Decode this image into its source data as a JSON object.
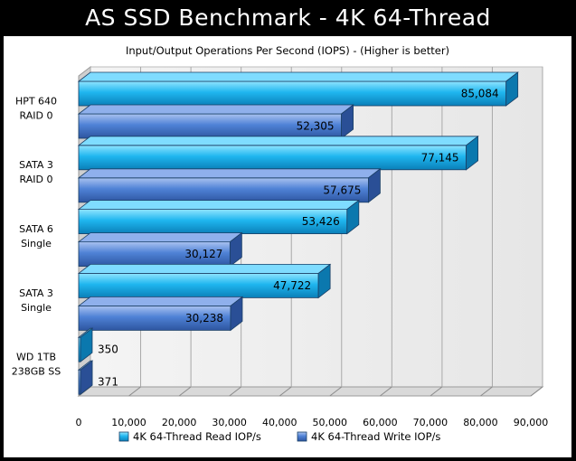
{
  "header": {
    "title": "AS SSD Benchmark - 4K 64-Thread"
  },
  "colors": {
    "read": "#1fb6ef",
    "write": "#4f82d6",
    "background": "#000000",
    "panel": "#ffffff"
  },
  "chart_data": {
    "type": "bar",
    "orientation": "horizontal",
    "style": "3d",
    "title": "Input/Output Operations Per Second (IOPS) - (Higher is better)",
    "categories": [
      [
        "HPT 640",
        "RAID 0"
      ],
      [
        "SATA 3",
        "RAID 0"
      ],
      [
        "SATA 6",
        "Single"
      ],
      [
        "SATA 3",
        "Single"
      ],
      [
        "WD 1TB",
        "238GB SS"
      ]
    ],
    "series": [
      {
        "name": "4K 64-Thread Read IOP/s",
        "values": [
          85084,
          77145,
          53426,
          47722,
          350
        ],
        "labels": [
          "85,084",
          "77,145",
          "53,426",
          "47,722",
          "350"
        ]
      },
      {
        "name": "4K 64-Thread Write IOP/s",
        "values": [
          52305,
          57675,
          30127,
          30238,
          371
        ],
        "labels": [
          "52,305",
          "57,675",
          "30,127",
          "30,238",
          "371"
        ]
      }
    ],
    "xlim": [
      0,
      90000
    ],
    "xticks": [
      "0",
      "10,000",
      "20,000",
      "30,000",
      "40,000",
      "50,000",
      "60,000",
      "70,000",
      "80,000",
      "90,000"
    ],
    "grid": true,
    "legend_position": "bottom"
  }
}
